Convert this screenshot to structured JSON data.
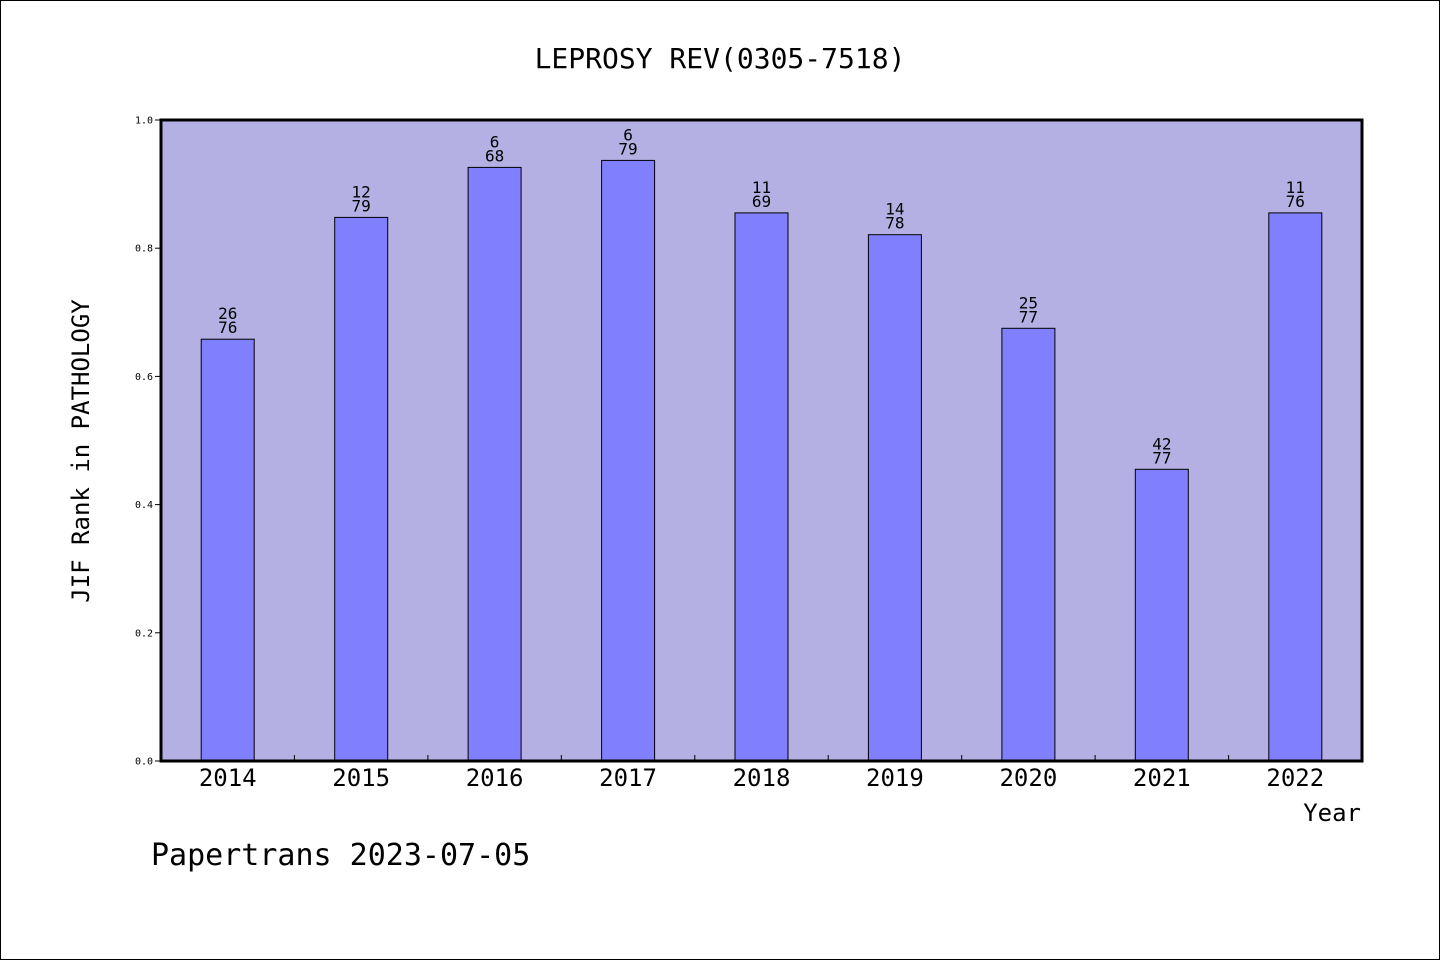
{
  "chart_data": {
    "type": "bar",
    "title": "LEPROSY REV(0305-7518)",
    "xlabel": "Year",
    "ylabel": "JIF Rank in PATHOLOGY",
    "categories": [
      "2014",
      "2015",
      "2016",
      "2017",
      "2018",
      "2019",
      "2020",
      "2021",
      "2022"
    ],
    "values": [
      0.658,
      0.848,
      0.926,
      0.937,
      0.855,
      0.821,
      0.675,
      0.455,
      0.855
    ],
    "data_labels": [
      {
        "rank": "26",
        "total": "76"
      },
      {
        "rank": "12",
        "total": "79"
      },
      {
        "rank": "6",
        "total": "68"
      },
      {
        "rank": "6",
        "total": "79"
      },
      {
        "rank": "11",
        "total": "69"
      },
      {
        "rank": "14",
        "total": "78"
      },
      {
        "rank": "25",
        "total": "77"
      },
      {
        "rank": "42",
        "total": "77"
      },
      {
        "rank": "11",
        "total": "76"
      }
    ],
    "yticks": [
      "0.0",
      "0.2",
      "0.4",
      "0.6",
      "0.8",
      "1.0"
    ],
    "ylim": [
      0,
      1
    ],
    "grid": false,
    "colors": {
      "plot_background": "#b5b0e3",
      "bar_fill": "#8080ff",
      "bar_stroke": "#000000"
    }
  },
  "footer": {
    "text": "Papertrans 2023-07-05"
  }
}
